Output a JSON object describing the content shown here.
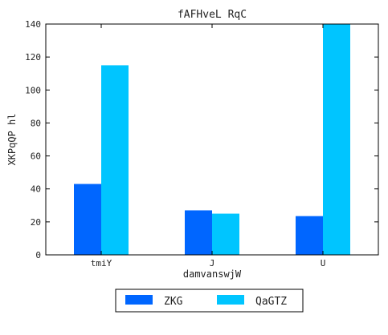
{
  "chart_data": {
    "type": "bar",
    "title": "fAFHveL RqC",
    "xlabel": "damvanswjW",
    "ylabel": "XKPqQP hl",
    "categories": [
      "tmiY",
      "J",
      "U"
    ],
    "series": [
      {
        "name": "ZKG",
        "color": "#0066ff",
        "values": [
          43,
          27,
          23.5
        ]
      },
      {
        "name": "QaGTZ",
        "color": "#00c5ff",
        "values": [
          115,
          25,
          140
        ]
      }
    ],
    "ylim": [
      0,
      140
    ],
    "yticks": [
      0,
      20,
      40,
      60,
      80,
      100,
      120,
      140
    ],
    "grid": false,
    "legend_position": "bottom-center"
  }
}
